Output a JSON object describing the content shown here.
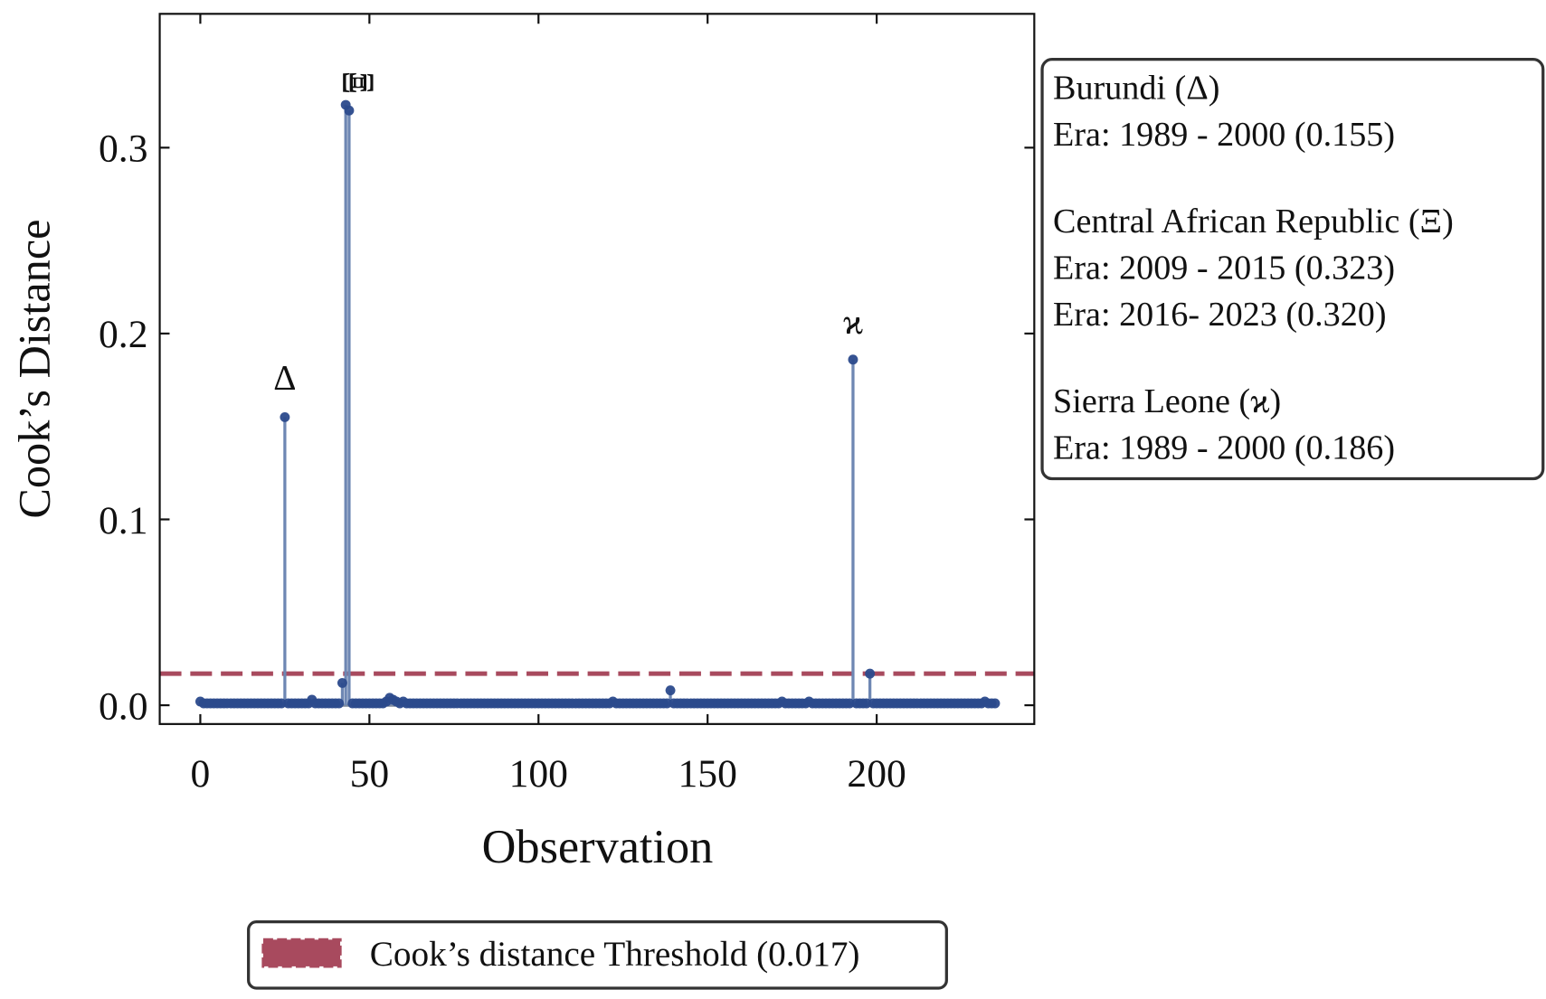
{
  "chart_data": {
    "type": "stem",
    "ylabel": "Cook’s Distance",
    "xlabel": "Observation",
    "xlim": [
      -12,
      246.6
    ],
    "ylim": [
      -0.0101,
      0.372
    ],
    "xticks": [
      0,
      50,
      100,
      150,
      200
    ],
    "yticks": [
      {
        "value": 0,
        "label": "0.0"
      },
      0.1,
      0.2,
      0.3
    ],
    "stem_color": "#6e87b3",
    "marker_color": "#2b4a8c",
    "threshold": 0.017,
    "threshold_color": "#a84a5e",
    "legend": {
      "label": "Cook’s distance Threshold (0.017)",
      "position": "bottom"
    },
    "annotations": [
      {
        "text": "Δ",
        "x": 25,
        "y": 0.17,
        "rotation": 0
      },
      {
        "text": "Ξ",
        "x": 42.3,
        "y": 0.335,
        "rotation": 90
      },
      {
        "text": "Ξ",
        "x": 44.3,
        "y": 0.335,
        "rotation": 90
      },
      {
        "text": "ϰ",
        "x": 193,
        "y": 0.2,
        "rotation": 0
      }
    ],
    "info_box": [
      [
        "Burundi (Δ)",
        "Era: 1989 - 2000 (0.155)"
      ],
      [
        "Central African Republic (Ξ)",
        "Era: 2009 - 2015 (0.323)",
        "Era: 2016- 2023 (0.320)"
      ],
      [
        "Sierra Leone (ϰ)",
        "Era: 1989 - 2000 (0.186)"
      ]
    ],
    "x": [
      0,
      1,
      2,
      3,
      4,
      5,
      6,
      7,
      8,
      9,
      10,
      11,
      12,
      13,
      14,
      15,
      16,
      17,
      18,
      19,
      20,
      21,
      22,
      23,
      24,
      25,
      26,
      27,
      28,
      29,
      30,
      31,
      32,
      33,
      34,
      35,
      36,
      37,
      38,
      39,
      40,
      41,
      42,
      43,
      44,
      45,
      46,
      47,
      48,
      49,
      50,
      51,
      52,
      53,
      54,
      55,
      56,
      57,
      58,
      59,
      60,
      61,
      62,
      63,
      64,
      65,
      66,
      67,
      68,
      69,
      70,
      71,
      72,
      73,
      74,
      75,
      76,
      77,
      78,
      79,
      80,
      81,
      82,
      83,
      84,
      85,
      86,
      87,
      88,
      89,
      90,
      91,
      92,
      93,
      94,
      95,
      96,
      97,
      98,
      99,
      100,
      101,
      102,
      103,
      104,
      105,
      106,
      107,
      108,
      109,
      110,
      111,
      112,
      113,
      114,
      115,
      116,
      117,
      118,
      119,
      120,
      121,
      122,
      123,
      124,
      125,
      126,
      127,
      128,
      129,
      130,
      131,
      132,
      133,
      134,
      135,
      136,
      137,
      138,
      139,
      140,
      141,
      142,
      143,
      144,
      145,
      146,
      147,
      148,
      149,
      150,
      151,
      152,
      153,
      154,
      155,
      156,
      157,
      158,
      159,
      160,
      161,
      162,
      163,
      164,
      165,
      166,
      167,
      168,
      169,
      170,
      171,
      172,
      173,
      174,
      175,
      176,
      177,
      178,
      179,
      180,
      181,
      182,
      183,
      184,
      185,
      186,
      187,
      188,
      189,
      190,
      191,
      192,
      193,
      194,
      195,
      196,
      197,
      198,
      199,
      200,
      201,
      202,
      203,
      204,
      205,
      206,
      207,
      208,
      209,
      210,
      211,
      212,
      213,
      214,
      215,
      216,
      217,
      218,
      219,
      220,
      221,
      222,
      223,
      224,
      225,
      226,
      227,
      228,
      229,
      230,
      231,
      232,
      233,
      234,
      235
    ],
    "values": [
      0.002,
      0.001,
      0.001,
      0.001,
      0.001,
      0.001,
      0.001,
      0.001,
      0.001,
      0.001,
      0.001,
      0.001,
      0.001,
      0.001,
      0.001,
      0.001,
      0.001,
      0.001,
      0.001,
      0.001,
      0.001,
      0.001,
      0.001,
      0.001,
      0.001,
      0.155,
      0.001,
      0.001,
      0.001,
      0.001,
      0.001,
      0.001,
      0.001,
      0.003,
      0.001,
      0.001,
      0.001,
      0.001,
      0.001,
      0.001,
      0.001,
      0.001,
      0.012,
      0.323,
      0.32,
      0.001,
      0.001,
      0.001,
      0.001,
      0.001,
      0.001,
      0.001,
      0.001,
      0.001,
      0.001,
      0.002,
      0.004,
      0.003,
      0.002,
      0.001,
      0.002,
      0.001,
      0.001,
      0.001,
      0.001,
      0.001,
      0.001,
      0.001,
      0.001,
      0.001,
      0.001,
      0.001,
      0.001,
      0.001,
      0.001,
      0.001,
      0.001,
      0.001,
      0.001,
      0.001,
      0.001,
      0.001,
      0.001,
      0.001,
      0.001,
      0.001,
      0.001,
      0.001,
      0.001,
      0.001,
      0.001,
      0.001,
      0.001,
      0.001,
      0.001,
      0.001,
      0.001,
      0.001,
      0.001,
      0.001,
      0.001,
      0.001,
      0.001,
      0.001,
      0.001,
      0.001,
      0.001,
      0.001,
      0.001,
      0.001,
      0.001,
      0.001,
      0.001,
      0.001,
      0.001,
      0.001,
      0.001,
      0.001,
      0.001,
      0.001,
      0.001,
      0.001,
      0.002,
      0.001,
      0.001,
      0.001,
      0.001,
      0.001,
      0.001,
      0.001,
      0.001,
      0.001,
      0.001,
      0.001,
      0.001,
      0.001,
      0.001,
      0.001,
      0.001,
      0.008,
      0.001,
      0.001,
      0.001,
      0.001,
      0.001,
      0.001,
      0.001,
      0.001,
      0.001,
      0.001,
      0.001,
      0.001,
      0.001,
      0.001,
      0.001,
      0.001,
      0.001,
      0.001,
      0.001,
      0.001,
      0.001,
      0.001,
      0.001,
      0.001,
      0.001,
      0.001,
      0.001,
      0.001,
      0.001,
      0.001,
      0.001,
      0.001,
      0.002,
      0.001,
      0.001,
      0.001,
      0.001,
      0.001,
      0.001,
      0.001,
      0.002,
      0.001,
      0.001,
      0.001,
      0.001,
      0.001,
      0.001,
      0.001,
      0.001,
      0.001,
      0.001,
      0.001,
      0.001,
      0.186,
      0.001,
      0.001,
      0.001,
      0.001,
      0.017,
      0.001,
      0.001,
      0.001,
      0.001,
      0.001,
      0.001,
      0.001,
      0.001,
      0.001,
      0.001,
      0.001,
      0.001,
      0.001,
      0.001,
      0.001,
      0.001,
      0.001,
      0.001,
      0.001,
      0.001,
      0.001,
      0.001,
      0.001,
      0.001,
      0.001,
      0.001,
      0.001,
      0.001,
      0.001,
      0.001,
      0.001,
      0.001,
      0.001,
      0.002,
      0.001,
      0.001,
      0.001
    ]
  }
}
